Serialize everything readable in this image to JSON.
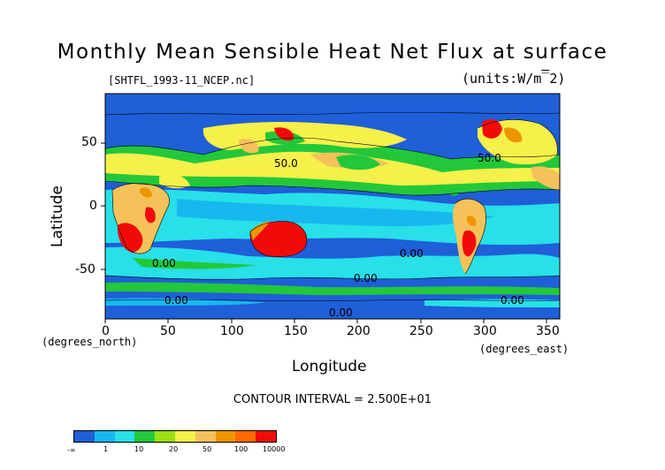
{
  "title": "Monthly Mean Sensible Heat Net Flux at surface",
  "source_file": "[SHTFL_1993-11_NCEP.nc]",
  "units_label": "(units:W/m^2)",
  "x_axis": {
    "label": "Longitude",
    "unit_note": "(degrees_east)",
    "ticks": [
      "0",
      "50",
      "100",
      "150",
      "200",
      "250",
      "300",
      "350"
    ],
    "range": [
      0,
      360
    ]
  },
  "y_axis": {
    "label": "Latitude",
    "unit_note": "(degrees_north)",
    "ticks": [
      "50",
      "0",
      "-50"
    ],
    "range": [
      -90,
      90
    ]
  },
  "contour_interval": "CONTOUR INTERVAL = 2.500E+01",
  "contour_labels": [
    "50.0",
    "50.0",
    "0.00",
    "0.00",
    "0.00",
    "0.00",
    "0.00",
    "0.00"
  ],
  "colorbar": {
    "colors": [
      "#1f5fd8",
      "#17b8f0",
      "#27e0e8",
      "#22c83a",
      "#9be012",
      "#f6f04a",
      "#f5c25a",
      "#ee9600",
      "#ff6a00",
      "#f20a0a"
    ],
    "tick_labels": [
      "-∞",
      "1",
      "10",
      "20",
      "50",
      "100",
      "10000"
    ]
  },
  "chart_data": {
    "type": "heatmap",
    "title": "Monthly Mean Sensible Heat Net Flux at surface",
    "xlabel": "Longitude",
    "ylabel": "Latitude",
    "xlim": [
      0,
      360
    ],
    "ylim": [
      -90,
      90
    ],
    "levels": [
      "-∞",
      1,
      10,
      20,
      50,
      100,
      10000
    ]
  }
}
